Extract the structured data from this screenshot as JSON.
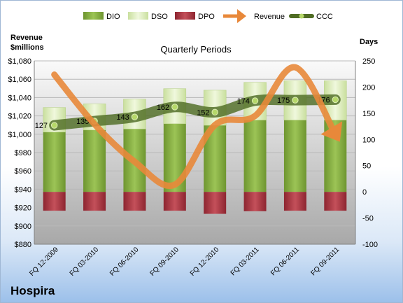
{
  "company": "Hospira",
  "chart_data": {
    "type": "bar",
    "title": "Quarterly Periods",
    "left_axis": {
      "label_line1": "Revenue",
      "label_line2": "$millions",
      "ylim": [
        880,
        1080
      ],
      "ticks": [
        "$880",
        "$900",
        "$920",
        "$940",
        "$960",
        "$980",
        "$1,000",
        "$1,020",
        "$1,040",
        "$1,060",
        "$1,080"
      ]
    },
    "right_axis": {
      "label": "Days",
      "ylim": [
        -100,
        250
      ],
      "ticks": [
        "-100",
        "-50",
        "0",
        "50",
        "100",
        "150",
        "200",
        "250"
      ]
    },
    "categories": [
      "FQ 12-2009",
      "FQ 03-2010",
      "FQ 06-2010",
      "FQ 09-2010",
      "FQ 12-2010",
      "FQ 03-2011",
      "FQ 06-2011",
      "FQ 09-2011"
    ],
    "legend": [
      "DIO",
      "DSO",
      "DPO",
      "Revenue",
      "CCC"
    ],
    "legend_position": "top",
    "series": [
      {
        "name": "DIO",
        "type": "stacked-bar",
        "axis": "right",
        "color": "#7fa83a",
        "values": [
          114,
          118,
          120,
          130,
          127,
          137,
          137,
          137
        ]
      },
      {
        "name": "DSO",
        "type": "stacked-bar",
        "axis": "right",
        "color": "#dcebbf",
        "values": [
          47,
          50,
          57,
          67,
          67,
          72,
          75,
          75
        ]
      },
      {
        "name": "DPO",
        "type": "bar-negative",
        "axis": "right",
        "color": "#a0303a",
        "values": [
          -36,
          -36,
          -36,
          -36,
          -42,
          -37,
          -36,
          -36
        ]
      },
      {
        "name": "Revenue",
        "type": "line-arrow",
        "axis": "left",
        "color": "#e8883a",
        "values": [
          1065,
          1011,
          970,
          945,
          1010,
          1020,
          1073,
          1000
        ]
      },
      {
        "name": "CCC",
        "type": "line",
        "axis": "right",
        "color": "#5c7a2e",
        "values": [
          127,
          135,
          143,
          162,
          152,
          174,
          175,
          176
        ]
      }
    ],
    "grid": true
  }
}
